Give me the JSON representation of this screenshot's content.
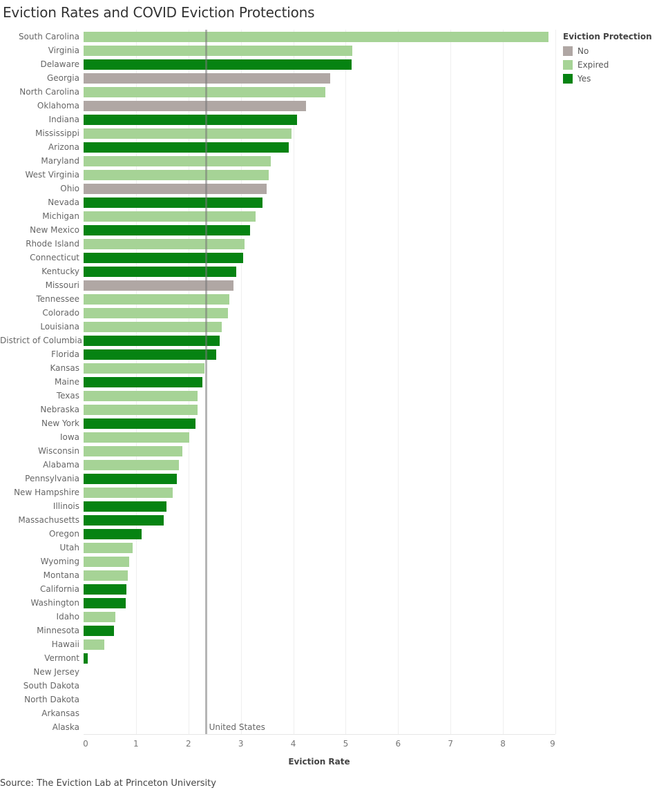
{
  "title": "Eviction Rates and COVID Eviction Protections",
  "source": "Source: The Eviction Lab at Princeton University",
  "legend": {
    "title": "Eviction Protection",
    "items": [
      {
        "label": "No",
        "color": "#b0a7a4"
      },
      {
        "label": "Expired",
        "color": "#a6d396"
      },
      {
        "label": "Yes",
        "color": "#068312"
      }
    ]
  },
  "reference_line": {
    "label": "United States",
    "value": 2.34
  },
  "chart_data": {
    "type": "bar",
    "orientation": "horizontal",
    "title": "Eviction Rates and COVID Eviction Protections",
    "xlabel": "Eviction Rate",
    "ylabel": "",
    "xlim": [
      0,
      9
    ],
    "x_ticks": [
      "0",
      "1",
      "2",
      "3",
      "4",
      "5",
      "6",
      "7",
      "8",
      "9"
    ],
    "grid": true,
    "legend_position": "right",
    "legend_title": "Eviction Protection",
    "reference_line": {
      "label": "United States",
      "value": 2.34
    },
    "categories": [
      "South Carolina",
      "Virginia",
      "Delaware",
      "Georgia",
      "North Carolina",
      "Oklahoma",
      "Indiana",
      "Mississippi",
      "Arizona",
      "Maryland",
      "West Virginia",
      "Ohio",
      "Nevada",
      "Michigan",
      "New Mexico",
      "Rhode Island",
      "Connecticut",
      "Kentucky",
      "Missouri",
      "Tennessee",
      "Colorado",
      "Louisiana",
      "District of Columbia",
      "Florida",
      "Kansas",
      "Maine",
      "Texas",
      "Nebraska",
      "New York",
      "Iowa",
      "Wisconsin",
      "Alabama",
      "Pennsylvania",
      "New Hampshire",
      "Illinois",
      "Massachusetts",
      "Oregon",
      "Utah",
      "Wyoming",
      "Montana",
      "California",
      "Washington",
      "Idaho",
      "Minnesota",
      "Hawaii",
      "Vermont",
      "New Jersey",
      "South Dakota",
      "North Dakota",
      "Arkansas",
      "Alaska"
    ],
    "values": [
      8.87,
      5.12,
      5.11,
      4.71,
      4.61,
      4.24,
      4.07,
      3.96,
      3.92,
      3.57,
      3.53,
      3.49,
      3.41,
      3.28,
      3.18,
      3.07,
      3.04,
      2.91,
      2.86,
      2.78,
      2.75,
      2.64,
      2.59,
      2.53,
      2.3,
      2.26,
      2.17,
      2.17,
      2.14,
      2.01,
      1.89,
      1.82,
      1.78,
      1.7,
      1.58,
      1.53,
      1.11,
      0.93,
      0.87,
      0.84,
      0.82,
      0.8,
      0.6,
      0.58,
      0.4,
      0.08,
      null,
      null,
      null,
      null,
      null
    ],
    "protection": [
      "Expired",
      "Expired",
      "Yes",
      "No",
      "Expired",
      "No",
      "Yes",
      "Expired",
      "Yes",
      "Expired",
      "Expired",
      "No",
      "Yes",
      "Expired",
      "Yes",
      "Expired",
      "Yes",
      "Yes",
      "No",
      "Expired",
      "Expired",
      "Expired",
      "Yes",
      "Yes",
      "Expired",
      "Yes",
      "Expired",
      "Expired",
      "Yes",
      "Expired",
      "Expired",
      "Expired",
      "Yes",
      "Expired",
      "Yes",
      "Yes",
      "Yes",
      "Expired",
      "Expired",
      "Expired",
      "Yes",
      "Yes",
      "Expired",
      "Yes",
      "Expired",
      "Yes",
      null,
      null,
      null,
      null,
      null
    ]
  }
}
